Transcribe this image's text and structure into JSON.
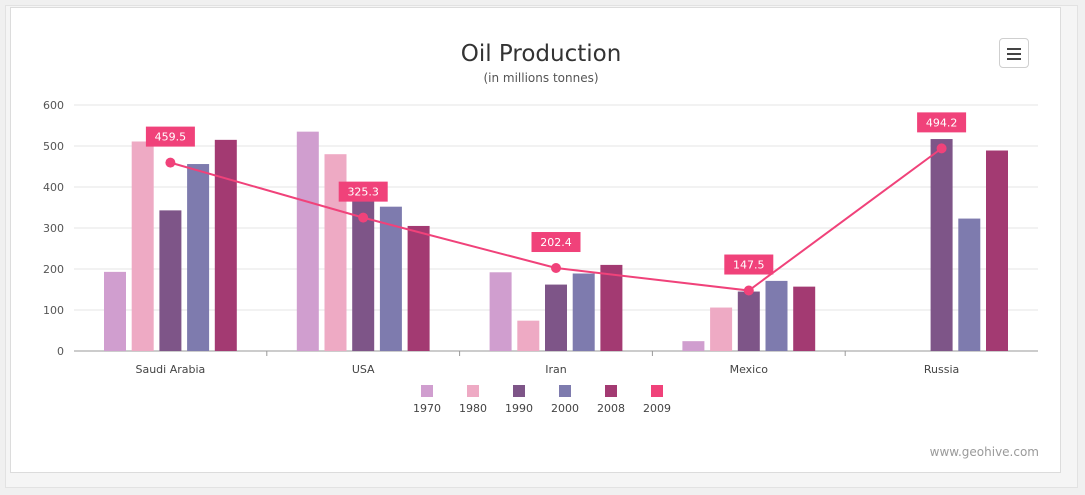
{
  "chart_data": {
    "type": "bar",
    "title": "Oil Production",
    "subtitle": "(in millions tonnes)",
    "categories": [
      "Saudi Arabia",
      "USA",
      "Iran",
      "Mexico",
      "Russia"
    ],
    "ylim": [
      0,
      600
    ],
    "yticks": [
      0,
      100,
      200,
      300,
      400,
      500,
      600
    ],
    "grid": true,
    "legend_position": "bottom",
    "series": [
      {
        "name": "1970",
        "type": "bar",
        "color": "#d09ecf",
        "values": [
          193,
          535,
          192,
          24,
          null
        ]
      },
      {
        "name": "1980",
        "type": "bar",
        "color": "#eeaac4",
        "values": [
          511,
          480,
          74,
          106,
          null
        ]
      },
      {
        "name": "1990",
        "type": "bar",
        "color": "#7e5588",
        "values": [
          343,
          367,
          162,
          145,
          517
        ]
      },
      {
        "name": "2000",
        "type": "bar",
        "color": "#7e7bae",
        "values": [
          456,
          352,
          189,
          171,
          323
        ]
      },
      {
        "name": "2008",
        "type": "bar",
        "color": "#a33a72",
        "values": [
          515,
          305,
          210,
          157,
          489
        ]
      },
      {
        "name": "2009",
        "type": "line",
        "color": "#f0427a",
        "values": [
          459.5,
          325.3,
          202.4,
          147.5,
          494.2
        ],
        "labels": [
          "459.5",
          "325.3",
          "202.4",
          "147.5",
          "494.2"
        ]
      }
    ]
  },
  "credits": "www.geohive.com",
  "menu_icon": "hamburger-menu-icon"
}
